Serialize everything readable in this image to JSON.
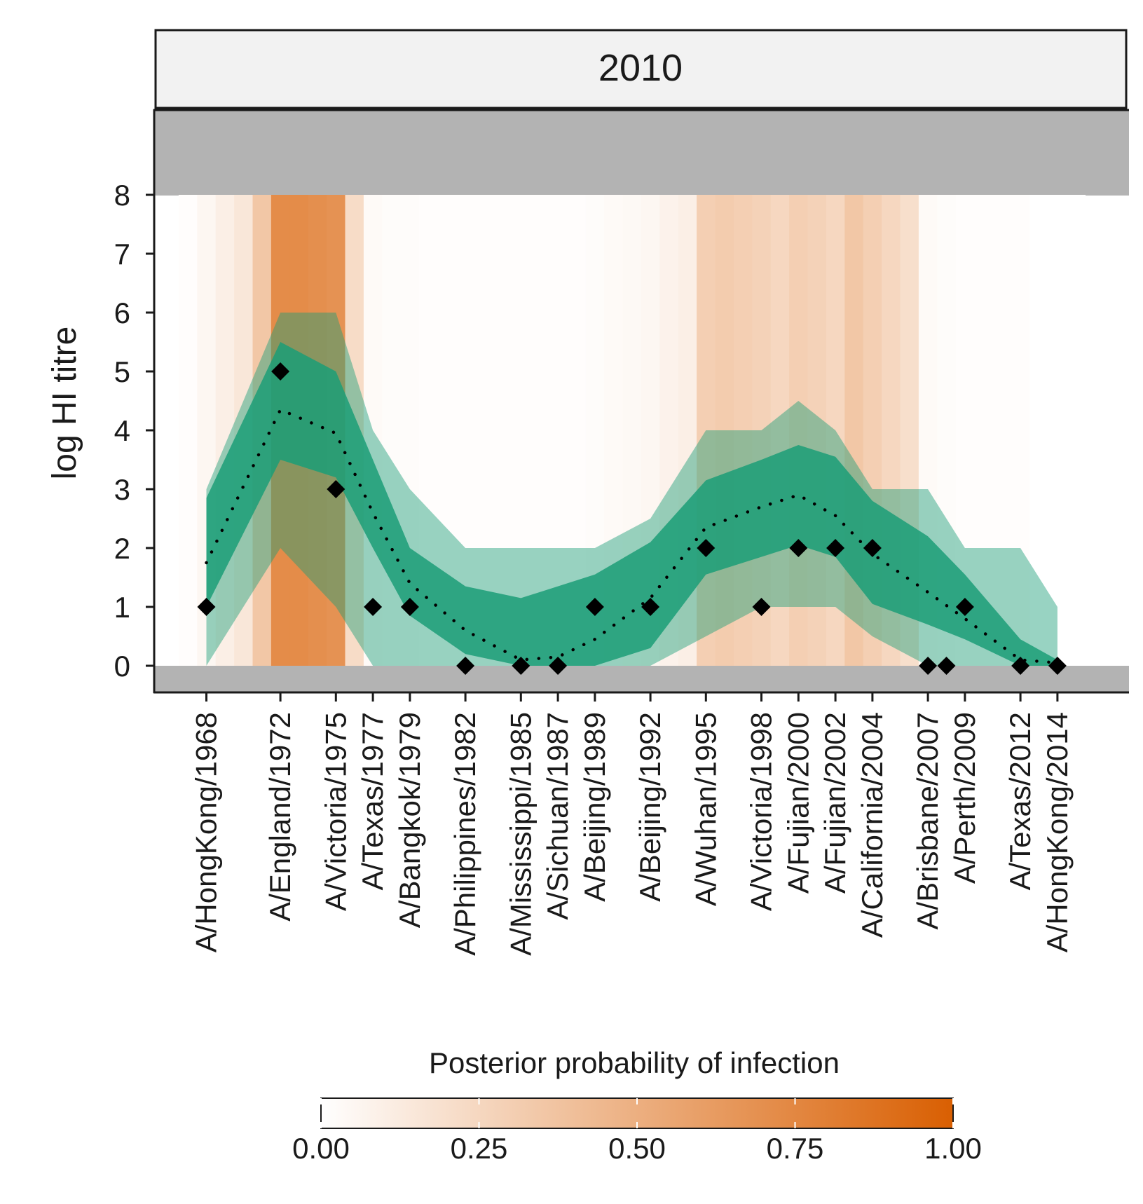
{
  "chart_data": {
    "type": "area",
    "panel_title": "2010",
    "ylabel": "log HI titre",
    "xlabel": "",
    "ylim": [
      0,
      8
    ],
    "ytick_labels": [
      "0",
      "1",
      "2",
      "3",
      "4",
      "5",
      "6",
      "7",
      "8"
    ],
    "strains": [
      {
        "label": "A/HongKong/1968",
        "year": 1968
      },
      {
        "label": "A/England/1972",
        "year": 1972
      },
      {
        "label": "A/Victoria/1975",
        "year": 1975
      },
      {
        "label": "A/Texas/1977",
        "year": 1977
      },
      {
        "label": "A/Bangkok/1979",
        "year": 1979
      },
      {
        "label": "A/Philippines/1982",
        "year": 1982
      },
      {
        "label": "A/Mississippi/1985",
        "year": 1985
      },
      {
        "label": "A/Sichuan/1987",
        "year": 1987
      },
      {
        "label": "A/Beijing/1989",
        "year": 1989
      },
      {
        "label": "A/Beijing/1992",
        "year": 1992
      },
      {
        "label": "A/Wuhan/1995",
        "year": 1995
      },
      {
        "label": "A/Victoria/1998",
        "year": 1998
      },
      {
        "label": "A/Fujian/2000",
        "year": 2000
      },
      {
        "label": "A/Fujian/2002",
        "year": 2002
      },
      {
        "label": "A/California/2004",
        "year": 2004
      },
      {
        "label": "A/Brisbane/2007",
        "year": 2007
      },
      {
        "label": "A/Perth/2009",
        "year": 2009
      },
      {
        "label": "A/Texas/2012",
        "year": 2012
      },
      {
        "label": "A/HongKong/2014",
        "year": 2014
      }
    ],
    "observed_titres": [
      {
        "year": 1968,
        "y": 1
      },
      {
        "year": 1972,
        "y": 5
      },
      {
        "year": 1975,
        "y": 3
      },
      {
        "year": 1977,
        "y": 1
      },
      {
        "year": 1979,
        "y": 1
      },
      {
        "year": 1982,
        "y": 0
      },
      {
        "year": 1985,
        "y": 0
      },
      {
        "year": 1987,
        "y": 0
      },
      {
        "year": 1989,
        "y": 1
      },
      {
        "year": 1992,
        "y": 1
      },
      {
        "year": 1995,
        "y": 2
      },
      {
        "year": 1998,
        "y": 1
      },
      {
        "year": 2000,
        "y": 2
      },
      {
        "year": 2002,
        "y": 2
      },
      {
        "year": 2004,
        "y": 2
      },
      {
        "year": 2007,
        "y": 0
      },
      {
        "year": 2008,
        "y": 0
      },
      {
        "year": 2009,
        "y": 1
      },
      {
        "year": 2012,
        "y": 0
      },
      {
        "year": 2014,
        "y": 0
      }
    ],
    "model_fit": {
      "x": [
        1968,
        1972,
        1975,
        1977,
        1979,
        1982,
        1985,
        1987,
        1989,
        1992,
        1995,
        1998,
        2000,
        2002,
        2004,
        2007,
        2009,
        2012,
        2014
      ],
      "median": [
        1.75,
        4.35,
        3.95,
        2.6,
        1.4,
        0.6,
        0.1,
        0.15,
        0.45,
        1.15,
        2.35,
        2.7,
        2.9,
        2.55,
        1.9,
        1.25,
        0.8,
        0.1,
        0.05
      ],
      "inner_lower": [
        1.0,
        3.5,
        3.2,
        2.0,
        0.85,
        0.2,
        0.0,
        0.0,
        0.0,
        0.3,
        1.55,
        1.85,
        2.05,
        1.85,
        1.05,
        0.7,
        0.45,
        0.0,
        0.0
      ],
      "inner_upper": [
        2.85,
        5.5,
        5.0,
        3.5,
        2.0,
        1.35,
        1.15,
        1.35,
        1.55,
        2.1,
        3.15,
        3.5,
        3.75,
        3.55,
        2.8,
        2.2,
        1.55,
        0.45,
        0.1
      ],
      "outer_lower": [
        0.0,
        2.0,
        1.0,
        0.0,
        0.0,
        0.0,
        0.0,
        0.0,
        0.0,
        0.0,
        0.5,
        1.0,
        1.0,
        1.0,
        0.5,
        0.0,
        0.0,
        0.0,
        0.0
      ],
      "outer_upper": [
        3.0,
        6.0,
        6.0,
        4.0,
        3.0,
        2.0,
        2.0,
        2.0,
        2.0,
        2.5,
        4.0,
        4.0,
        4.5,
        4.0,
        3.0,
        3.0,
        2.0,
        2.0,
        1.0
      ]
    },
    "infection_probability": {
      "years": [
        1967,
        1968,
        1969,
        1970,
        1971,
        1972,
        1973,
        1974,
        1975,
        1976,
        1977,
        1978,
        1979,
        1980,
        1981,
        1982,
        1983,
        1984,
        1985,
        1986,
        1987,
        1988,
        1989,
        1990,
        1991,
        1992,
        1993,
        1994,
        1995,
        1996,
        1997,
        1998,
        1999,
        2000,
        2001,
        2002,
        2003,
        2004,
        2005,
        2006,
        2007,
        2008,
        2009,
        2010,
        2011,
        2012,
        2013,
        2014,
        2015
      ],
      "values": [
        0.01,
        0.05,
        0.1,
        0.15,
        0.35,
        0.72,
        0.72,
        0.7,
        0.68,
        0.22,
        0.03,
        0.02,
        0.02,
        0.01,
        0.01,
        0.01,
        0.01,
        0.01,
        0.01,
        0.01,
        0.01,
        0.01,
        0.02,
        0.03,
        0.04,
        0.05,
        0.08,
        0.1,
        0.3,
        0.32,
        0.3,
        0.28,
        0.25,
        0.3,
        0.28,
        0.25,
        0.35,
        0.3,
        0.25,
        0.2,
        0.03,
        0.02,
        0.01,
        0.01,
        0.01,
        0.01,
        0.0,
        0.0,
        0.0
      ]
    },
    "legend": {
      "title": "Posterior probability of infection",
      "tick_labels": [
        "0.00",
        "0.25",
        "0.50",
        "0.75",
        "1.00"
      ],
      "tick_values": [
        0,
        0.25,
        0.5,
        0.75,
        1.0
      ],
      "color_low": "#ffffff",
      "color_high": "#d95f02",
      "placement": "bottom"
    },
    "colors": {
      "band": "#1b9e77",
      "points": "#000000",
      "strip_background": "#f2f2f2",
      "censored_region": "#b3b3b3"
    },
    "grid": false
  }
}
